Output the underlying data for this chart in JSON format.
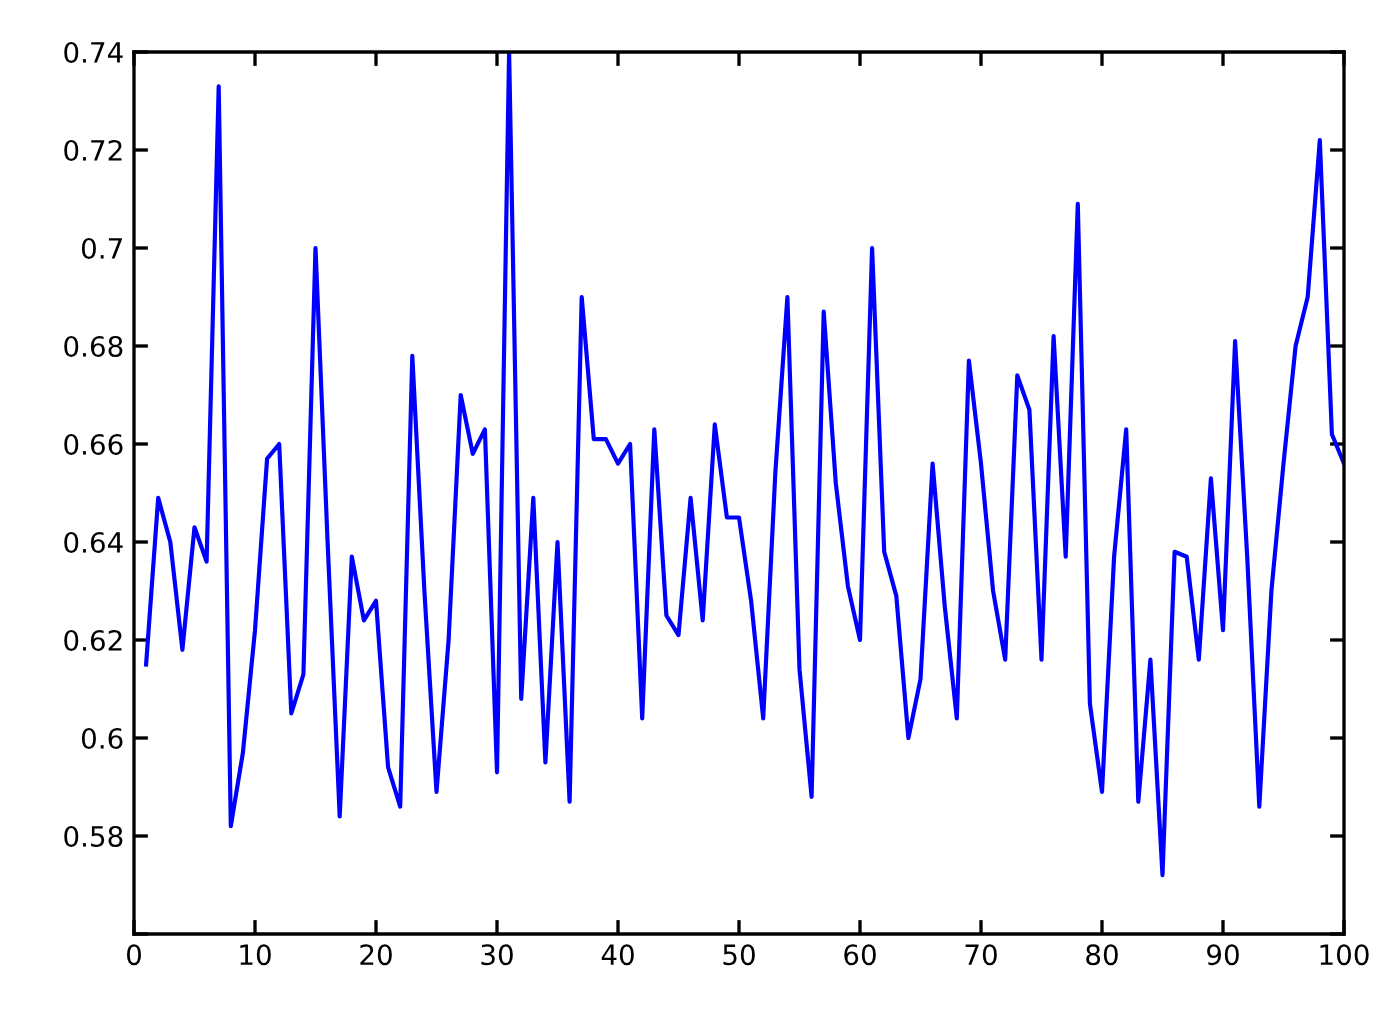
{
  "chart_data": {
    "type": "line",
    "x": [
      1,
      2,
      3,
      4,
      5,
      6,
      7,
      8,
      9,
      10,
      11,
      12,
      13,
      14,
      15,
      16,
      17,
      18,
      19,
      20,
      21,
      22,
      23,
      24,
      25,
      26,
      27,
      28,
      29,
      30,
      31,
      32,
      33,
      34,
      35,
      36,
      37,
      38,
      39,
      40,
      41,
      42,
      43,
      44,
      45,
      46,
      47,
      48,
      49,
      50,
      51,
      52,
      53,
      54,
      55,
      56,
      57,
      58,
      59,
      60,
      61,
      62,
      63,
      64,
      65,
      66,
      67,
      68,
      69,
      70,
      71,
      72,
      73,
      74,
      75,
      76,
      77,
      78,
      79,
      80,
      81,
      82,
      83,
      84,
      85,
      86,
      87,
      88,
      89,
      90,
      91,
      92,
      93,
      94,
      95,
      96,
      97,
      98,
      99,
      100
    ],
    "series": [
      {
        "color": "#0000ff",
        "values": [
          0.615,
          0.649,
          0.64,
          0.618,
          0.643,
          0.636,
          0.733,
          0.582,
          0.597,
          0.622,
          0.657,
          0.66,
          0.605,
          0.613,
          0.7,
          0.64,
          0.584,
          0.637,
          0.624,
          0.628,
          0.594,
          0.586,
          0.678,
          0.63,
          0.589,
          0.62,
          0.67,
          0.658,
          0.663,
          0.593,
          0.74,
          0.608,
          0.649,
          0.595,
          0.64,
          0.587,
          0.69,
          0.661,
          0.661,
          0.656,
          0.66,
          0.604,
          0.663,
          0.625,
          0.621,
          0.649,
          0.624,
          0.664,
          0.645,
          0.645,
          0.628,
          0.604,
          0.654,
          0.69,
          0.614,
          0.588,
          0.687,
          0.652,
          0.631,
          0.62,
          0.7,
          0.638,
          0.629,
          0.6,
          0.612,
          0.656,
          0.627,
          0.604,
          0.677,
          0.656,
          0.63,
          0.616,
          0.674,
          0.667,
          0.616,
          0.682,
          0.637,
          0.709,
          0.607,
          0.589,
          0.637,
          0.663,
          0.587,
          0.616,
          0.572,
          0.638,
          0.637,
          0.616,
          0.653,
          0.622,
          0.681,
          0.637,
          0.586,
          0.63,
          0.656,
          0.68,
          0.69,
          0.722,
          0.662,
          0.656
        ]
      }
    ],
    "xlim": [
      0,
      100
    ],
    "xticks": [
      0,
      10,
      20,
      30,
      40,
      50,
      60,
      70,
      80,
      90,
      100
    ],
    "ylim": [
      0.56,
      0.74
    ],
    "yticks": [
      {
        "value": 0.56,
        "label": null
      },
      0.58,
      0.6,
      0.62,
      0.64,
      0.66,
      0.68,
      0.7,
      0.72,
      0.74
    ],
    "grid": false,
    "line_style": "solid",
    "marker": "none"
  }
}
